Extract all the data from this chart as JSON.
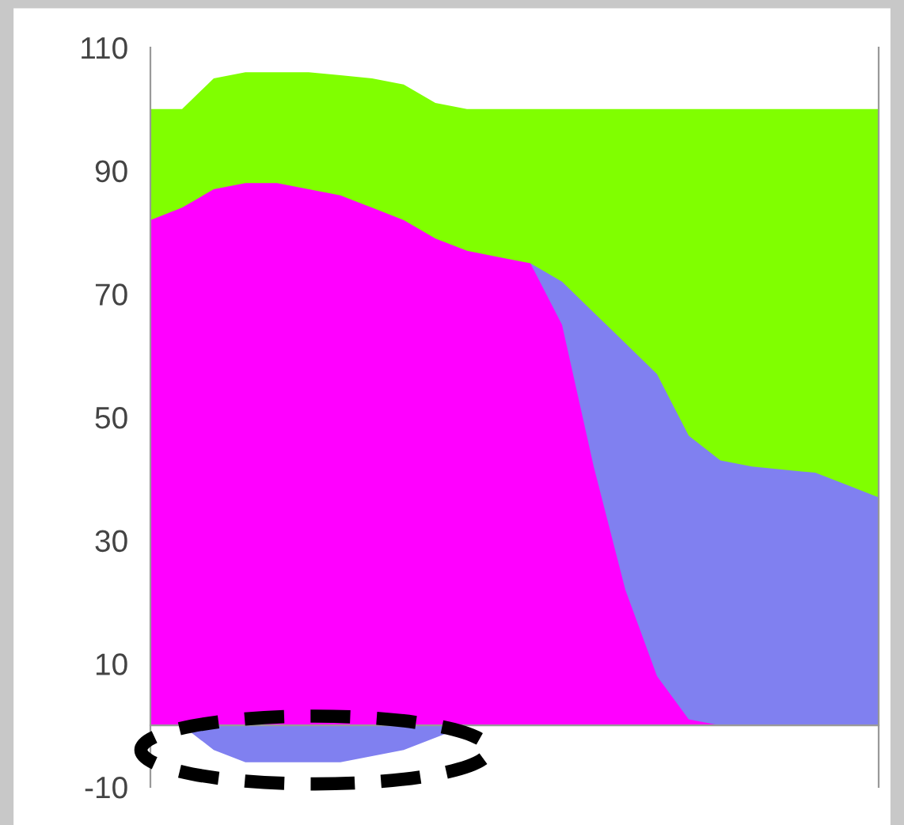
{
  "chart_data": {
    "type": "area",
    "categories": [
      null,
      null,
      null,
      null,
      null,
      null,
      null,
      null,
      null,
      null,
      null,
      null,
      null,
      null,
      null,
      null,
      null,
      null,
      null,
      null,
      null,
      null,
      null,
      null
    ],
    "series": [
      {
        "color": "#80ff00",
        "values": [
          100,
          100,
          105,
          106,
          106,
          106,
          105.5,
          105,
          104,
          101,
          100,
          100,
          100,
          100,
          100,
          100,
          100,
          100,
          100,
          100,
          100,
          100,
          100,
          100
        ]
      },
      {
        "color": "#8080f0",
        "values": [
          null,
          0,
          -4,
          -6,
          -6,
          -6,
          -6,
          -5,
          -4,
          -2,
          0,
          null,
          75,
          72,
          67,
          62,
          57,
          47,
          43,
          42,
          41.5,
          41,
          39,
          37
        ]
      },
      {
        "color": "#ff00ff",
        "values": [
          82,
          84,
          87,
          88,
          88,
          87,
          86,
          84,
          82,
          79,
          77,
          76,
          75,
          65,
          42,
          22,
          8,
          1,
          0,
          0,
          0,
          0,
          0,
          0
        ]
      }
    ],
    "ylim": [
      -10,
      110
    ],
    "yticks": [
      -10,
      10,
      30,
      50,
      70,
      90,
      110
    ],
    "grid": false
  }
}
